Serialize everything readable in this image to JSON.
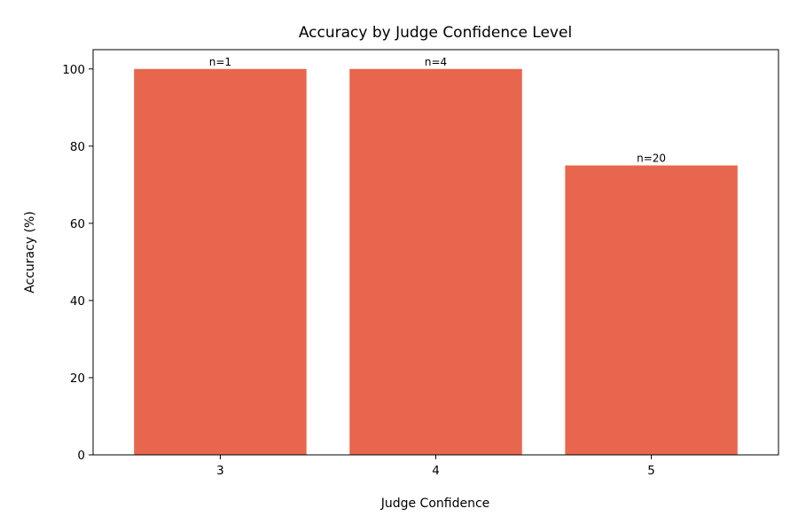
{
  "chart_data": {
    "type": "bar",
    "title": "Accuracy by Judge Confidence Level",
    "xlabel": "Judge Confidence",
    "ylabel": "Accuracy (%)",
    "categories": [
      "3",
      "4",
      "5"
    ],
    "values": [
      100,
      100,
      75
    ],
    "bar_labels": [
      "n=1",
      "n=4",
      "n=20"
    ],
    "ylim": [
      0,
      105
    ],
    "yticks": [
      0,
      20,
      40,
      60,
      80,
      100
    ],
    "grid": false,
    "legend": "none",
    "bar_color": "#e8664d"
  }
}
